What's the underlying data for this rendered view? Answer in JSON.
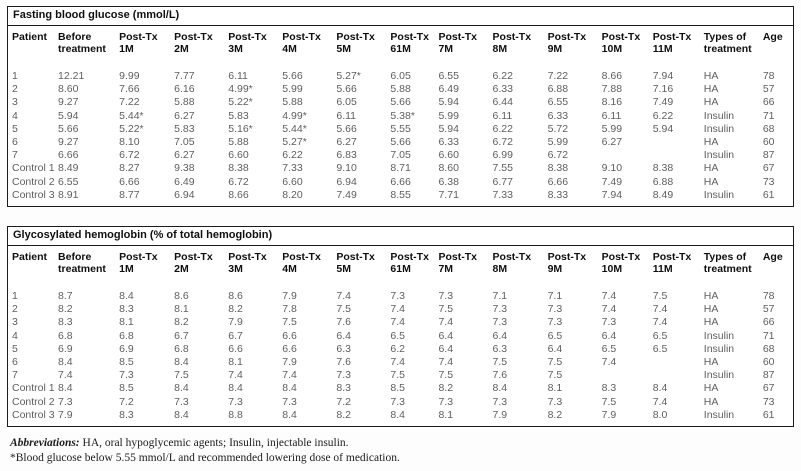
{
  "tables": [
    {
      "title": "Fasting blood glucose (mmol/L)",
      "columns": [
        "Patient",
        "Before\ntreatment",
        "Post-Tx\n1M",
        "Post-Tx\n2M",
        "Post-Tx\n3M",
        "Post-Tx\n4M",
        "Post-Tx\n5M",
        "Post-Tx\n61M",
        "Post-Tx\n7M",
        "Post-Tx\n8M",
        "Post-Tx\n9M",
        "Post-Tx\n10M",
        "Post-Tx\n11M",
        "Types of\ntreatment",
        "Age"
      ],
      "rows": [
        [
          "1",
          "12.21",
          "9.99",
          "7.77",
          "6.11",
          "5.66",
          "5.27*",
          "6.05",
          "6.55",
          "6.22",
          "7.22",
          "8.66",
          "7.94",
          "HA",
          "78"
        ],
        [
          "2",
          "8.60",
          "7.66",
          "6.16",
          "4.99*",
          "5.99",
          "5.66",
          "5.88",
          "6.49",
          "6.33",
          "6.88",
          "7.88",
          "7.16",
          "HA",
          "57"
        ],
        [
          "3",
          "9.27",
          "7.22",
          "5.88",
          "5.22*",
          "5.88",
          "6.05",
          "5.66",
          "5.94",
          "6.44",
          "6.55",
          "8.16",
          "7.49",
          "HA",
          "66"
        ],
        [
          "4",
          "5.94",
          "5.44*",
          "6.27",
          "5.83",
          "4.99*",
          "6.11",
          "5.38*",
          "5.99",
          "6.11",
          "6.33",
          "6.11",
          "6.22",
          "Insulin",
          "71"
        ],
        [
          "5",
          "5.66",
          "5.22*",
          "5.83",
          "5.16*",
          "5.44*",
          "5.66",
          "5.55",
          "5.94",
          "6.22",
          "5.72",
          "5.99",
          "5.94",
          "Insulin",
          "68"
        ],
        [
          "6",
          "9.27",
          "8.10",
          "7.05",
          "5.88",
          "5.27*",
          "6.27",
          "5.66",
          "6.33",
          "6.72",
          "5.99",
          "6.27",
          "",
          "HA",
          "60"
        ],
        [
          "7",
          "6.66",
          "6.72",
          "6.27",
          "6.60",
          "6.22",
          "6.83",
          "7.05",
          "6.60",
          "6.99",
          "6.72",
          "",
          "",
          "Insulin",
          "87"
        ],
        [
          "Control 1",
          "8.49",
          "8.27",
          "9.38",
          "8.38",
          "7.33",
          "9.10",
          "8.71",
          "8.60",
          "7.55",
          "8.38",
          "9.10",
          "8.38",
          "HA",
          "67"
        ],
        [
          "Control 2",
          "6.55",
          "6.66",
          "6.49",
          "6.72",
          "6.60",
          "6.94",
          "6.66",
          "6.38",
          "6.77",
          "6.66",
          "7.49",
          "6.88",
          "HA",
          "73"
        ],
        [
          "Control 3",
          "8.91",
          "8.77",
          "6.94",
          "8.66",
          "8.20",
          "7.49",
          "8.55",
          "7.71",
          "7.33",
          "8.33",
          "7.94",
          "8.49",
          "Insulin",
          "61"
        ]
      ]
    },
    {
      "title": "Glycosylated hemoglobin (% of total hemoglobin)",
      "columns": [
        "Patient",
        "Before\ntreatment",
        "Post-Tx\n1M",
        "Post-Tx\n2M",
        "Post-Tx\n3M",
        "Post-Tx\n4M",
        "Post-Tx\n5M",
        "Post-Tx\n61M",
        "Post-Tx\n7M",
        "Post-Tx\n8M",
        "Post-Tx\n9M",
        "Post-Tx\n10M",
        "Post-Tx\n11M",
        "Types of\ntreatment",
        "Age"
      ],
      "rows": [
        [
          "1",
          "8.7",
          "8.4",
          "8.6",
          "8.6",
          "7.9",
          "7.4",
          "7.3",
          "7.3",
          "7.1",
          "7.1",
          "7.4",
          "7.5",
          "HA",
          "78"
        ],
        [
          "2",
          "8.2",
          "8.3",
          "8.1",
          "8.2",
          "7.8",
          "7.5",
          "7.4",
          "7.5",
          "7.3",
          "7.3",
          "7.4",
          "7.4",
          "HA",
          "57"
        ],
        [
          "3",
          "8.3",
          "8.1",
          "8.2",
          "7.9",
          "7.5",
          "7.6",
          "7.4",
          "7.4",
          "7.3",
          "7.3",
          "7.3",
          "7.4",
          "HA",
          "66"
        ],
        [
          "4",
          "6.8",
          "6.8",
          "6.7",
          "6.7",
          "6.6",
          "6.4",
          "6.5",
          "6.4",
          "6.4",
          "6.5",
          "6.4",
          "6.5",
          "Insulin",
          "71"
        ],
        [
          "5",
          "6.9",
          "6.9",
          "6.8",
          "6.6",
          "6.6",
          "6.3",
          "6.2",
          "6.4",
          "6.3",
          "6.4",
          "6.5",
          "6.5",
          "Insulin",
          "68"
        ],
        [
          "6",
          "8.4",
          "8.5",
          "8.4",
          "8.1",
          "7.9",
          "7.6",
          "7.4",
          "7.4",
          "7.5",
          "7.5",
          "7.4",
          "",
          "HA",
          "60"
        ],
        [
          "7",
          "7.4",
          "7.3",
          "7.5",
          "7.4",
          "7.4",
          "7.3",
          "7.5",
          "7.5",
          "7.6",
          "7.5",
          "",
          "",
          "Insulin",
          "87"
        ],
        [
          "Control 1",
          "8.4",
          "8.5",
          "8.4",
          "8.4",
          "8.4",
          "8.3",
          "8.5",
          "8.2",
          "8.4",
          "8.1",
          "8.3",
          "8.4",
          "HA",
          "67"
        ],
        [
          "Control 2",
          "7.3",
          "7.2",
          "7.3",
          "7.3",
          "7.3",
          "7.2",
          "7.3",
          "7.3",
          "7.3",
          "7.3",
          "7.5",
          "7.4",
          "HA",
          "73"
        ],
        [
          "Control 3",
          "7.9",
          "8.3",
          "8.4",
          "8.8",
          "8.4",
          "8.2",
          "8.4",
          "8.1",
          "7.9",
          "8.2",
          "7.9",
          "8.0",
          "Insulin",
          "61"
        ]
      ]
    }
  ],
  "footnotes": {
    "abbrev_label": "Abbreviations:",
    "abbrev_text": " HA, oral hypoglycemic agents; Insulin, injectable insulin.",
    "note": "*Blood glucose below 5.55 mmol/L and recommended lowering dose of medication."
  }
}
